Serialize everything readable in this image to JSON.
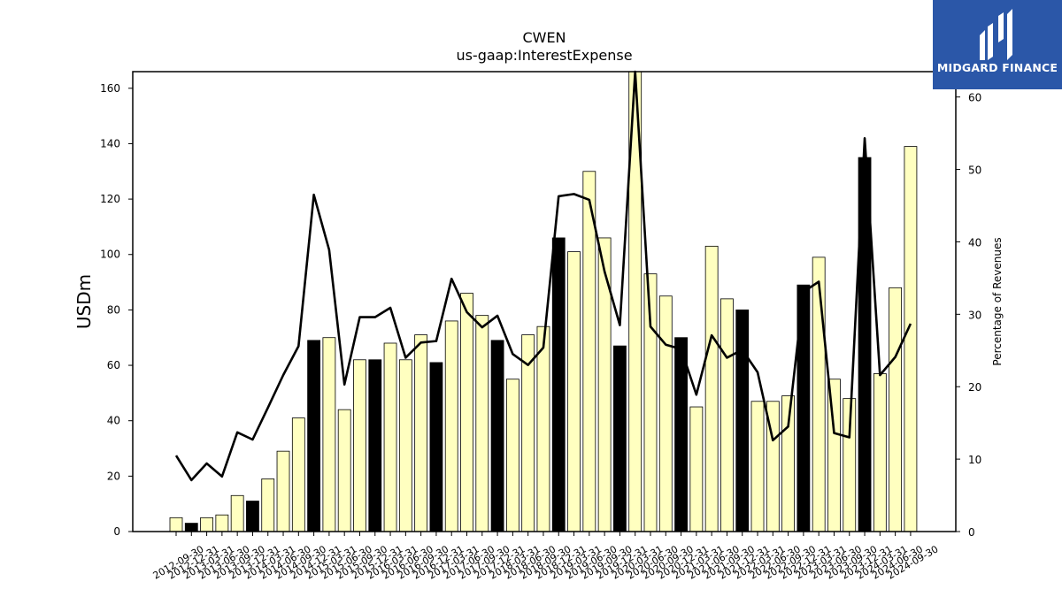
{
  "chart_data": {
    "type": "bar",
    "title": "CWEN",
    "subtitle": "us-gaap:InterestExpense",
    "ylabel": "USDm",
    "y2label": "Percentage of Revenues",
    "ylim": [
      0,
      166
    ],
    "y2lim": [
      0,
      63.5
    ],
    "yticks": [
      0,
      20,
      40,
      60,
      80,
      100,
      120,
      140,
      160
    ],
    "y2ticks": [
      0,
      10,
      20,
      30,
      40,
      50,
      60
    ],
    "categories": [
      "2012-09-30",
      "2012-12-31",
      "2013-03-31",
      "2013-06-30",
      "2013-09-30",
      "2013-12-31",
      "2014-03-31",
      "2014-06-30",
      "2014-09-30",
      "2014-12-31",
      "2015-03-31",
      "2015-06-30",
      "2015-09-30",
      "2015-12-31",
      "2016-03-31",
      "2016-06-30",
      "2016-09-30",
      "2016-12-31",
      "2017-03-31",
      "2017-06-30",
      "2017-09-30",
      "2017-12-31",
      "2018-03-31",
      "2018-06-30",
      "2018-09-30",
      "2018-12-31",
      "2019-03-31",
      "2019-06-30",
      "2019-09-30",
      "2019-12-31",
      "2020-03-31",
      "2020-06-30",
      "2020-09-30",
      "2020-12-31",
      "2021-03-31",
      "2021-06-30",
      "2021-09-30",
      "2021-12-31",
      "2022-03-31",
      "2022-06-30",
      "2022-09-30",
      "2022-12-31",
      "2023-03-31",
      "2023-06-30",
      "2023-09-30",
      "2023-12-31",
      "2024-03-31",
      "2024-06-30",
      "2024-09-30"
    ],
    "bar_colors": {
      "quarter": "#ffffc0",
      "year_end": "#000000",
      "edge": "#000000"
    },
    "series": [
      {
        "type": "bar",
        "values": [
          5,
          3,
          5,
          6,
          13,
          11,
          19,
          29,
          41,
          69,
          70,
          44,
          62,
          62,
          68,
          62,
          71,
          61,
          76,
          86,
          78,
          69,
          55,
          71,
          74,
          106,
          101,
          130,
          106,
          67,
          166,
          93,
          85,
          70,
          45,
          103,
          84,
          80,
          47,
          47,
          49,
          89,
          99,
          55,
          48,
          135,
          57,
          88,
          139
        ],
        "is_year_end": [
          false,
          true,
          false,
          false,
          false,
          true,
          false,
          false,
          false,
          true,
          false,
          false,
          false,
          true,
          false,
          false,
          false,
          true,
          false,
          false,
          false,
          true,
          false,
          false,
          false,
          true,
          false,
          false,
          false,
          true,
          false,
          false,
          false,
          true,
          false,
          false,
          false,
          true,
          false,
          false,
          false,
          true,
          false,
          false,
          false,
          true,
          false,
          false,
          false
        ]
      },
      {
        "type": "line",
        "axis": "right",
        "color": "#000000",
        "values": [
          10.5,
          7.1,
          9.4,
          7.6,
          13.7,
          12.7,
          17.1,
          21.6,
          25.6,
          46.5,
          38.9,
          20.3,
          29.6,
          29.6,
          30.9,
          24.0,
          26.1,
          26.3,
          34.9,
          30.3,
          28.2,
          29.8,
          24.5,
          23.0,
          25.4,
          46.3,
          46.6,
          45.8,
          35.9,
          28.5,
          64.0,
          28.3,
          25.8,
          25.2,
          18.9,
          27.1,
          24.0,
          25.1,
          22.0,
          12.6,
          14.5,
          33.1,
          34.5,
          13.6,
          13.0,
          54.3,
          21.6,
          24.1,
          28.7
        ]
      }
    ],
    "grid": false,
    "legend": "none"
  },
  "logo": {
    "text": "MIDGARD FINANCE",
    "background": "#2b57a8"
  }
}
